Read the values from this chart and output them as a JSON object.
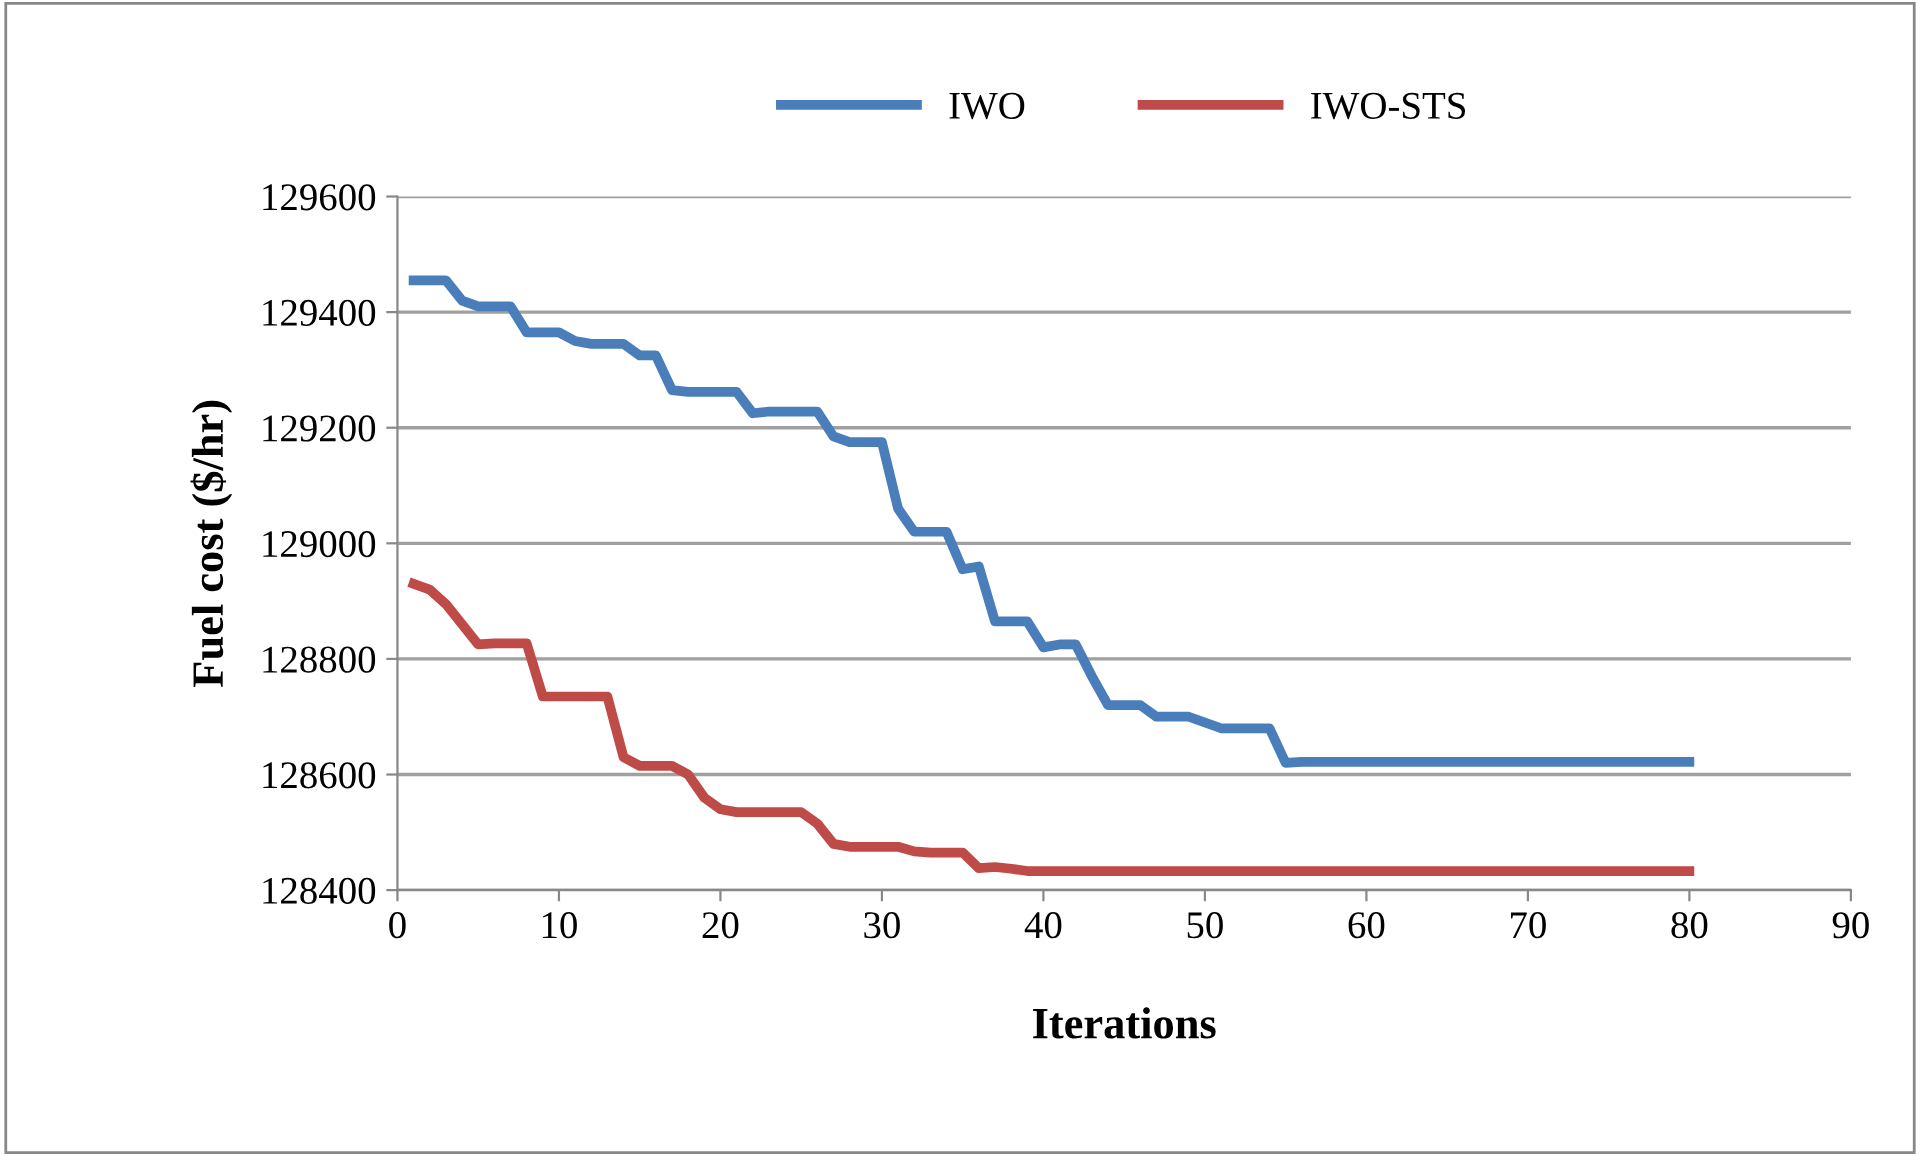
{
  "chart_data": {
    "type": "line",
    "xlabel": "Iterations",
    "ylabel": "Fuel cost ($/hr)",
    "xlim": [
      0,
      90
    ],
    "xticks": [
      0,
      10,
      20,
      30,
      40,
      50,
      60,
      70,
      80,
      90
    ],
    "ylim": [
      128400,
      129600
    ],
    "yticks": [
      128400,
      128600,
      128800,
      129000,
      129200,
      129400,
      129600
    ],
    "grid": "y",
    "legend": "top",
    "marker": "none",
    "line_style": "solid",
    "series": [
      {
        "name": "IWO",
        "color": "#4a7ebb",
        "x": [
          1,
          2,
          3,
          4,
          5,
          6,
          7,
          8,
          9,
          10,
          11,
          12,
          13,
          14,
          15,
          16,
          17,
          18,
          19,
          20,
          21,
          22,
          23,
          24,
          25,
          26,
          27,
          28,
          29,
          30,
          31,
          32,
          33,
          34,
          35,
          36,
          37,
          38,
          39,
          40,
          41,
          42,
          43,
          44,
          45,
          46,
          47,
          48,
          49,
          50,
          51,
          52,
          53,
          54,
          55,
          56,
          80
        ],
        "values": [
          129455,
          129455,
          129455,
          129420,
          129410,
          129410,
          129410,
          129365,
          129365,
          129365,
          129350,
          129345,
          129345,
          129345,
          129325,
          129325,
          129265,
          129262,
          129262,
          129262,
          129262,
          129225,
          129228,
          129228,
          129228,
          129228,
          129185,
          129175,
          129175,
          129175,
          129060,
          129020,
          129020,
          129020,
          128955,
          128960,
          128865,
          128865,
          128865,
          128820,
          128825,
          128825,
          128770,
          128720,
          128720,
          128720,
          128700,
          128700,
          128700,
          128690,
          128680,
          128680,
          128680,
          128680,
          128620,
          128622,
          128622
        ]
      },
      {
        "name": "IWO-STS",
        "color": "#be4b48",
        "x": [
          1,
          2,
          3,
          4,
          5,
          6,
          7,
          8,
          9,
          10,
          11,
          12,
          13,
          14,
          15,
          16,
          17,
          18,
          19,
          20,
          21,
          22,
          23,
          24,
          25,
          26,
          27,
          28,
          29,
          30,
          31,
          32,
          33,
          34,
          35,
          36,
          37,
          38,
          39,
          40,
          80
        ],
        "values": [
          128930,
          128920,
          128895,
          128860,
          128825,
          128827,
          128827,
          128827,
          128735,
          128735,
          128735,
          128735,
          128735,
          128630,
          128615,
          128615,
          128615,
          128600,
          128560,
          128540,
          128535,
          128535,
          128535,
          128535,
          128535,
          128515,
          128480,
          128475,
          128475,
          128475,
          128475,
          128467,
          128465,
          128465,
          128465,
          128438,
          128440,
          128437,
          128433,
          128433,
          128433
        ]
      }
    ]
  }
}
